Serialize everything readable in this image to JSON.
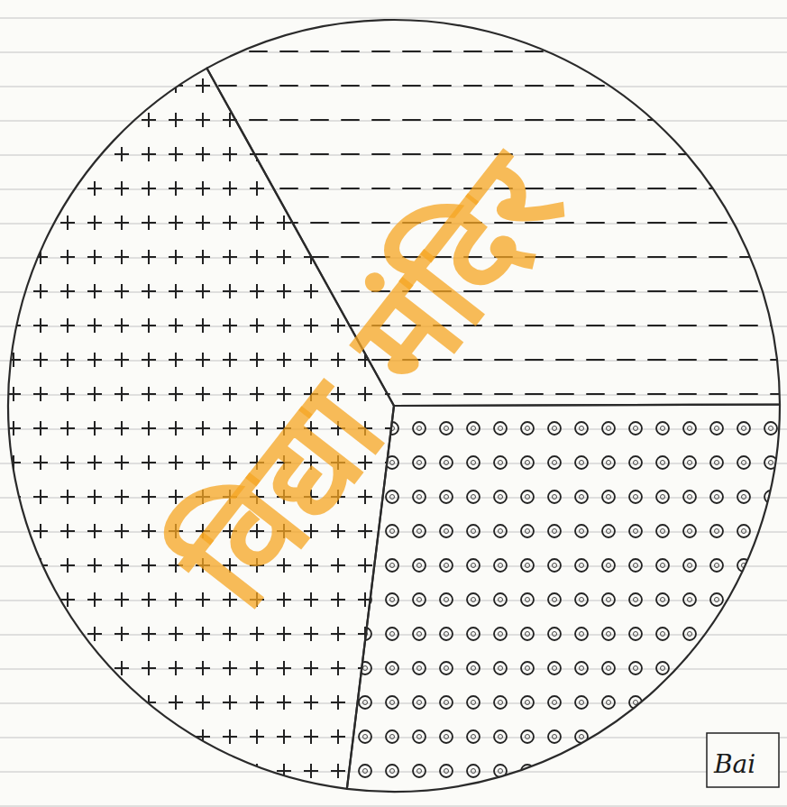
{
  "chart_data": {
    "type": "pie",
    "categories": [
      null,
      null,
      null
    ],
    "values": [
      33,
      27,
      40
    ],
    "data_labels": false,
    "annotations": [
      "Bai",
      "विद्या मंदिर"
    ]
  }
}
